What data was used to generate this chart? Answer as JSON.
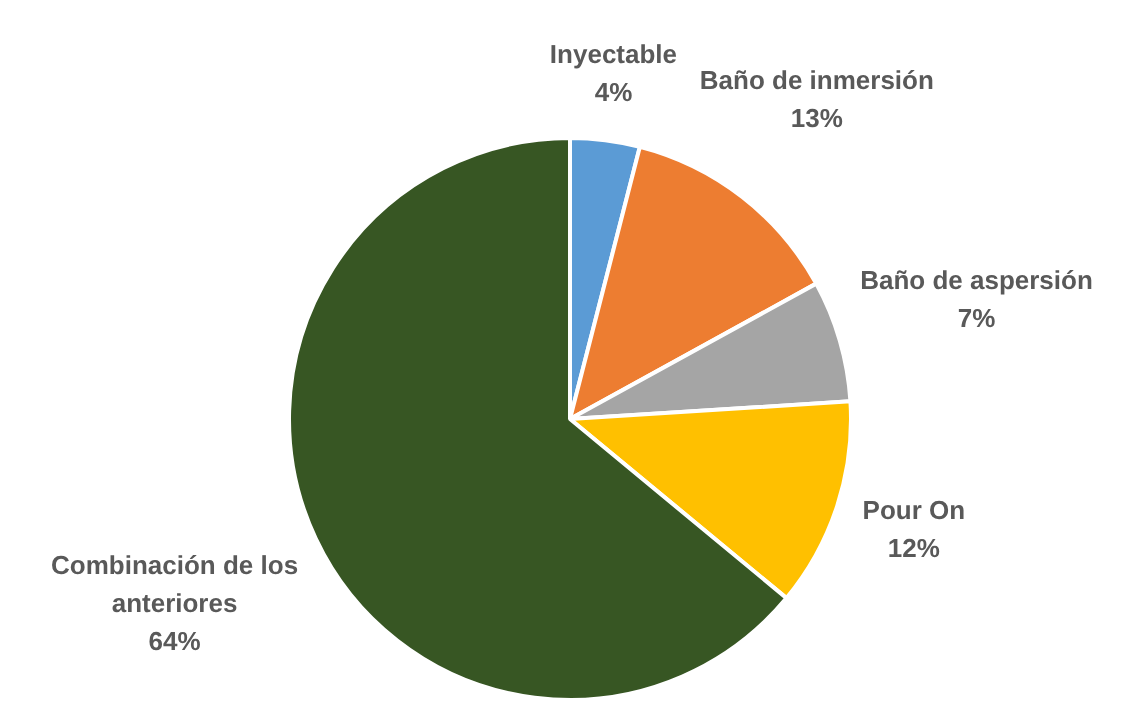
{
  "chart_data": {
    "type": "pie",
    "categories": [
      "Inyectable",
      "Baño de inmersión",
      "Baño de aspersión",
      "Pour On",
      "Combinación de los anteriores"
    ],
    "values": [
      4,
      13,
      7,
      12,
      64
    ],
    "value_labels": [
      "4%",
      "13%",
      "7%",
      "12%",
      "64%"
    ],
    "colors": [
      "#5b9bd5",
      "#ed7d31",
      "#a5a5a5",
      "#ffc000",
      "#375623"
    ],
    "legend": false
  }
}
